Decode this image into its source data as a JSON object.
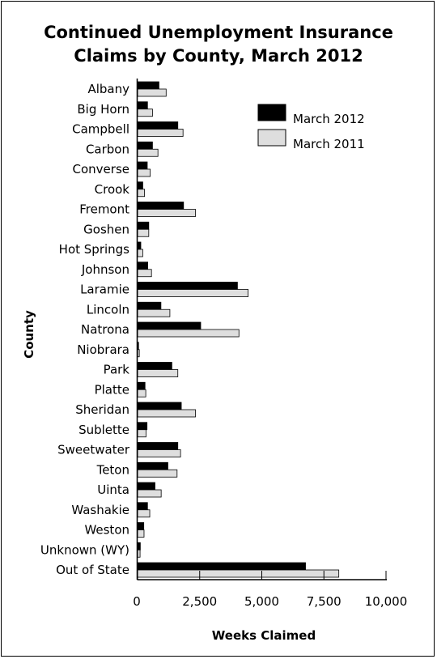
{
  "chart_data": {
    "type": "bar",
    "orientation": "horizontal",
    "title_lines": [
      "Continued Unemployment Insurance",
      "Claims by County, March 2012"
    ],
    "xlabel": "Weeks Claimed",
    "ylabel": "County",
    "xlim": [
      0,
      10000
    ],
    "xticks": [
      "0",
      "2,500",
      "5,000",
      "7,500",
      "10,000"
    ],
    "xtick_values": [
      0,
      2500,
      5000,
      7500,
      10000
    ],
    "legend_position": "top-right",
    "categories": [
      "Albany",
      "Big Horn",
      "Campbell",
      "Carbon",
      "Converse",
      "Crook",
      "Fremont",
      "Goshen",
      "Hot Springs",
      "Johnson",
      "Laramie",
      "Lincoln",
      "Natrona",
      "Niobrara",
      "Park",
      "Platte",
      "Sheridan",
      "Sublette",
      "Sweetwater",
      "Teton",
      "Uinta",
      "Washakie",
      "Weston",
      "Unknown (WY)",
      "Out of State"
    ],
    "series": [
      {
        "name": "March 2012",
        "color": "#000000",
        "values": [
          860,
          400,
          1620,
          600,
          390,
          210,
          1850,
          450,
          130,
          410,
          4020,
          940,
          2540,
          40,
          1380,
          300,
          1760,
          380,
          1620,
          1220,
          700,
          400,
          250,
          110,
          6760
        ]
      },
      {
        "name": "March 2011",
        "color": "#dedede",
        "values": [
          1150,
          600,
          1830,
          820,
          510,
          280,
          2330,
          450,
          210,
          560,
          4450,
          1300,
          4080,
          70,
          1620,
          330,
          2330,
          340,
          1730,
          1590,
          950,
          490,
          260,
          100,
          8100
        ]
      }
    ]
  }
}
